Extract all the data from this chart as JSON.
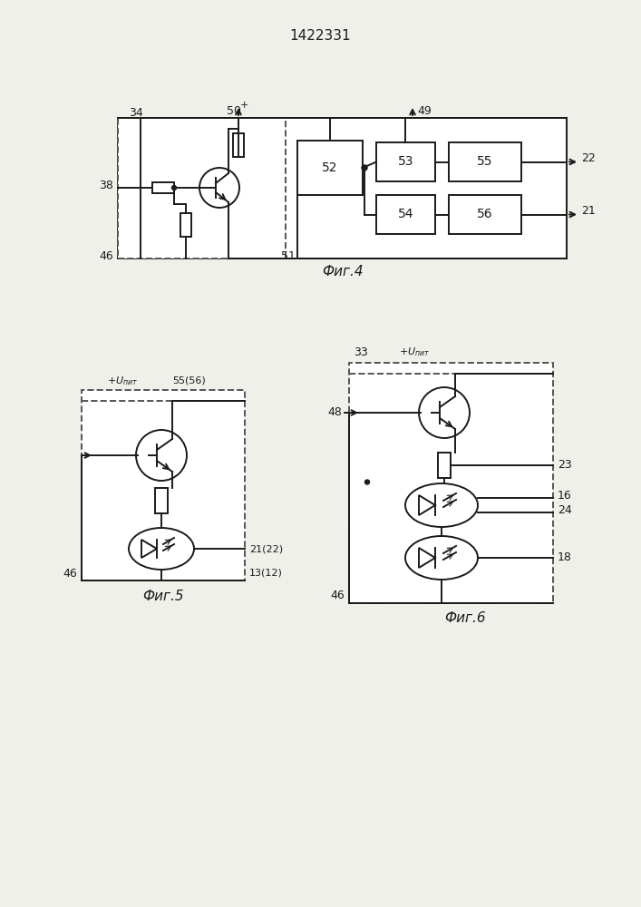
{
  "title": "1422331",
  "fig4_label": "Фиг.4",
  "fig5_label": "Фиг.5",
  "fig6_label": "Фиг.6",
  "line_color": "#1a1a1a",
  "bg_color": "#f0f0eb",
  "lw": 1.4
}
